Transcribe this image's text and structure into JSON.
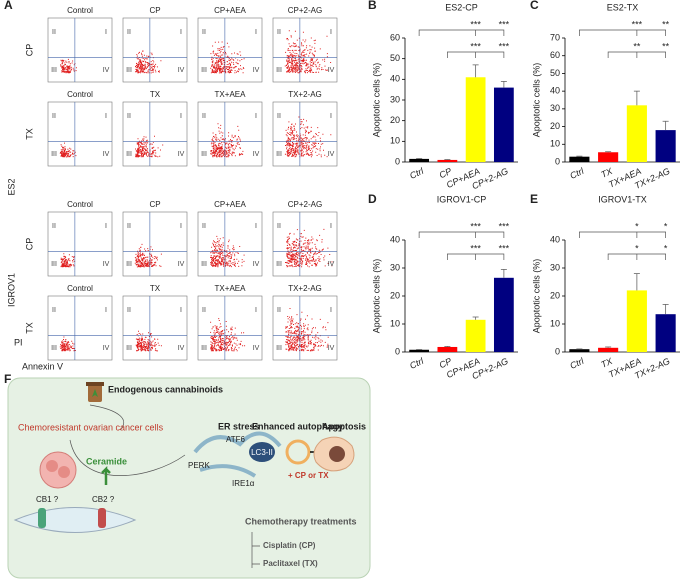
{
  "panel_labels": [
    "A",
    "B",
    "C",
    "D",
    "E",
    "F"
  ],
  "flow": {
    "cell_lines": [
      "ES2",
      "IGROV1"
    ],
    "rows": [
      {
        "treatment": "CP",
        "titles": [
          "Control",
          "CP",
          "CP+AEA",
          "CP+2-AG"
        ]
      },
      {
        "treatment": "TX",
        "titles": [
          "Control",
          "TX",
          "TX+AEA",
          "TX+2-AG"
        ]
      },
      {
        "treatment": "CP",
        "titles": [
          "Control",
          "CP",
          "CP+AEA",
          "CP+2-AG"
        ]
      },
      {
        "treatment": "TX",
        "titles": [
          "Control",
          "TX",
          "TX+AEA",
          "TX+2-AG"
        ]
      }
    ],
    "quadrants": [
      "I",
      "II",
      "III",
      "IV"
    ],
    "y_axis": "PI",
    "x_axis": "Annexin V"
  },
  "chart_data": [
    {
      "type": "bar",
      "title": "ES2-CP",
      "y_label": "Apoptotic cells (%)",
      "categories": [
        "Ctrl",
        "CP",
        "CP+AEA",
        "CP+2-AG"
      ],
      "values": [
        1.5,
        1,
        41,
        36
      ],
      "errors": [
        0.2,
        0.2,
        6,
        3
      ],
      "colors": [
        "#000000",
        "#ff0000",
        "#ffff00",
        "#000080"
      ],
      "ylim": [
        0,
        60
      ],
      "yticks": [
        0,
        10,
        20,
        30,
        40,
        50,
        60
      ],
      "annotations": [
        "***",
        "***",
        "***",
        "***"
      ]
    },
    {
      "type": "bar",
      "title": "ES2-TX",
      "y_label": "Apoptotic cells (%)",
      "categories": [
        "Ctrl",
        "TX",
        "TX+AEA",
        "TX+2-AG"
      ],
      "values": [
        3,
        5.5,
        32,
        18
      ],
      "errors": [
        0.3,
        0.3,
        8,
        5
      ],
      "colors": [
        "#000000",
        "#ff0000",
        "#ffff00",
        "#000080"
      ],
      "ylim": [
        0,
        70
      ],
      "yticks": [
        0,
        10,
        20,
        30,
        40,
        50,
        60,
        70
      ],
      "annotations": [
        "***",
        "**",
        "**",
        "**"
      ]
    },
    {
      "type": "bar",
      "title": "IGROV1-CP",
      "y_label": "Apoptotic cells (%)",
      "categories": [
        "Ctrl",
        "CP",
        "CP+AEA",
        "CP+2-AG"
      ],
      "values": [
        0.8,
        1.8,
        11.5,
        26.5
      ],
      "errors": [
        0.1,
        0.2,
        1,
        3
      ],
      "colors": [
        "#000000",
        "#ff0000",
        "#ffff00",
        "#000080"
      ],
      "ylim": [
        0,
        40
      ],
      "yticks": [
        0,
        10,
        20,
        30,
        40
      ],
      "annotations": [
        "***",
        "***",
        "***",
        "***"
      ]
    },
    {
      "type": "bar",
      "title": "IGROV1-TX",
      "y_label": "Apoptotic cells (%)",
      "categories": [
        "Ctrl",
        "TX",
        "TX+AEA",
        "TX+2-AG"
      ],
      "values": [
        1,
        1.5,
        22,
        13.5
      ],
      "errors": [
        0.1,
        0.3,
        6,
        3.5
      ],
      "colors": [
        "#000000",
        "#ff0000",
        "#ffff00",
        "#000080"
      ],
      "ylim": [
        0,
        40
      ],
      "yticks": [
        0,
        10,
        20,
        30,
        40
      ],
      "annotations": [
        "*",
        "*",
        "*",
        "*"
      ]
    }
  ],
  "diagram": {
    "endocannabinoids": "Endogenous cannabinoids",
    "cells": "Chemoresistant ovarian cancer cells",
    "er_stress": "ER stress",
    "autophagy": "Enhanced autophagy",
    "apoptosis": "Apoptosis",
    "ceramide": "Ceramide",
    "perk": "PERK",
    "atf6": "ATF6",
    "ire1": "IRE1α",
    "lc3": "LC3-II",
    "drug": "+ CP or TX",
    "cb1": "CB1 ?",
    "cb2": "CB2 ?",
    "treatments": "Chemotherapy treatments",
    "cisplatin": "Cisplatin (CP)",
    "paclitaxel": "Paclitaxel (TX)"
  }
}
